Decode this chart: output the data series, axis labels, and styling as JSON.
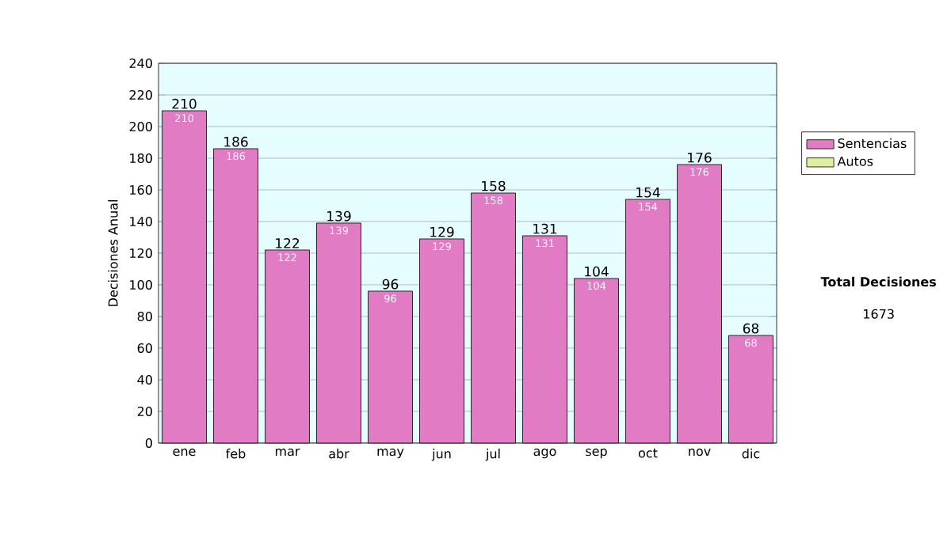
{
  "chart_data": {
    "type": "bar",
    "ylabel": "Decisiones Anual",
    "stacked": true,
    "categories": [
      "ene",
      "feb",
      "mar",
      "abr",
      "may",
      "jun",
      "jul",
      "ago",
      "sep",
      "oct",
      "nov",
      "dic"
    ],
    "series": [
      {
        "name": "Sentencias",
        "color": "#e07bc4",
        "values": [
          210,
          186,
          122,
          139,
          96,
          129,
          158,
          131,
          104,
          154,
          176,
          68
        ],
        "value_labels": [
          "210",
          "186",
          "122",
          "139",
          "96",
          "129",
          "158",
          "131",
          "104",
          "154",
          "176",
          "68"
        ]
      },
      {
        "name": "Autos",
        "color": "#ddf0a0",
        "values": [
          0,
          0,
          0,
          0,
          0,
          0,
          0,
          0,
          0,
          0,
          0,
          0
        ]
      }
    ],
    "totals": [
      "210",
      "186",
      "122",
      "139",
      "96",
      "129",
      "158",
      "131",
      "104",
      "154",
      "176",
      "68"
    ],
    "ylim": [
      0,
      240
    ],
    "yticks": [
      0,
      20,
      40,
      60,
      80,
      100,
      120,
      140,
      160,
      180,
      200,
      220,
      240
    ],
    "grid": "y",
    "legend": "right",
    "annotations": [
      "**Total Decisiones**",
      "1673"
    ]
  }
}
